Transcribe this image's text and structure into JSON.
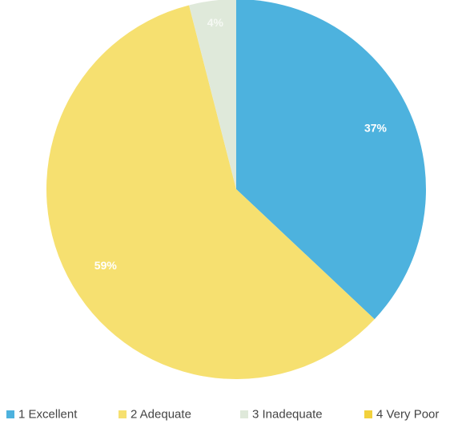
{
  "chart_data": {
    "type": "pie",
    "categories": [
      "1 Excellent",
      "2 Adequate",
      "3 Inadequate",
      "4 Very Poor"
    ],
    "values": [
      37,
      59,
      4,
      0
    ],
    "value_labels": [
      "37%",
      "59%",
      "4%",
      null
    ],
    "colors": [
      "#4db2de",
      "#f6e070",
      "#dfe9da",
      "#f2d13c"
    ],
    "legend": "bottom"
  }
}
